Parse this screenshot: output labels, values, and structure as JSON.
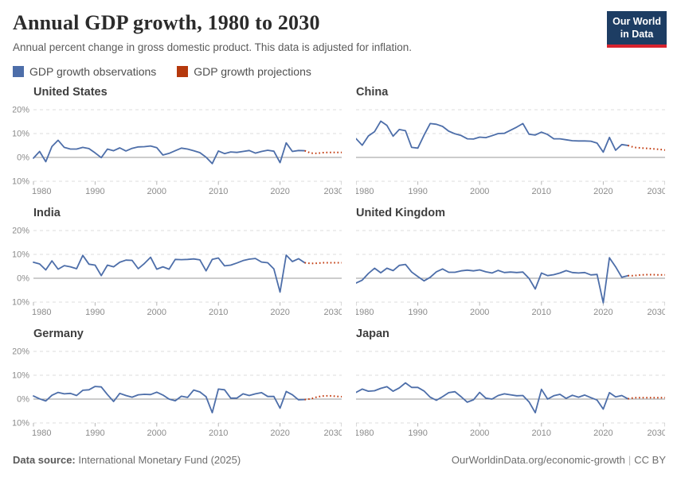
{
  "header": {
    "title": "Annual GDP growth, 1980 to 2030",
    "subtitle": "Annual percent change in gross domestic product. This data is adjusted for inflation."
  },
  "logo": {
    "line1": "Our World",
    "line2": "in Data",
    "bg": "#1d3d63",
    "bar": "#d8232e"
  },
  "legend": [
    {
      "label": "GDP growth observations",
      "color": "#4d6ea9"
    },
    {
      "label": "GDP growth projections",
      "color": "#b5390d"
    }
  ],
  "colors": {
    "observation_line": "#4d6ea9",
    "projection_line": "#c23a0e",
    "gridline": "#dcdcdc",
    "zero_line": "#9a9a9a",
    "axis_text": "#8b8b8b",
    "tick": "#b5b5b5"
  },
  "axes": {
    "xlim": [
      1980,
      2030
    ],
    "ylim": [
      -10,
      20
    ],
    "x_ticks": [
      1980,
      1990,
      2000,
      2010,
      2020,
      2030
    ],
    "y_ticks": [
      {
        "value": 20,
        "label": "20%"
      },
      {
        "value": 10,
        "label": "10%"
      },
      {
        "value": 0,
        "label": "0%"
      },
      {
        "value": -10,
        "label": "-10%"
      }
    ],
    "grid": "dashed horizontal, solid zero line"
  },
  "chart_data": [
    {
      "type": "line",
      "title": "United States",
      "show_y_labels": true,
      "obs_start_year": 1980,
      "obs_end_year": 2024,
      "proj_end_year": 2030,
      "observations": [
        -0.3,
        2.5,
        -1.8,
        4.6,
        7.2,
        4.2,
        3.5,
        3.5,
        4.2,
        3.7,
        1.9,
        -0.1,
        3.5,
        2.8,
        4.0,
        2.7,
        3.8,
        4.4,
        4.5,
        4.8,
        4.1,
        1.0,
        1.7,
        2.8,
        3.9,
        3.5,
        2.8,
        2.0,
        0.1,
        -2.6,
        2.7,
        1.6,
        2.3,
        2.1,
        2.5,
        2.9,
        1.8,
        2.5,
        3.0,
        2.6,
        -2.2,
        6.1,
        2.5,
        2.9,
        2.8
      ],
      "projections": [
        1.8,
        1.7,
        2.0,
        2.1,
        2.1,
        2.1
      ]
    },
    {
      "type": "line",
      "title": "China",
      "show_y_labels": false,
      "obs_start_year": 1980,
      "obs_end_year": 2024,
      "proj_end_year": 2030,
      "observations": [
        7.9,
        5.1,
        9.0,
        10.8,
        15.2,
        13.4,
        8.9,
        11.7,
        11.2,
        4.2,
        3.9,
        9.3,
        14.2,
        13.9,
        13.0,
        11.0,
        9.9,
        9.2,
        7.8,
        7.7,
        8.5,
        8.3,
        9.1,
        10.0,
        10.1,
        11.4,
        12.7,
        14.2,
        9.7,
        9.4,
        10.6,
        9.6,
        7.8,
        7.8,
        7.4,
        7.0,
        6.9,
        6.9,
        6.8,
        6.0,
        2.2,
        8.4,
        3.0,
        5.4,
        5.0
      ],
      "projections": [
        4.2,
        4.0,
        3.8,
        3.6,
        3.4,
        3.1
      ]
    },
    {
      "type": "line",
      "title": "India",
      "show_y_labels": true,
      "obs_start_year": 1980,
      "obs_end_year": 2024,
      "proj_end_year": 2030,
      "observations": [
        6.7,
        6.0,
        3.5,
        7.3,
        3.8,
        5.3,
        4.8,
        4.0,
        9.6,
        5.9,
        5.5,
        1.1,
        5.5,
        4.8,
        6.7,
        7.6,
        7.5,
        4.0,
        6.2,
        8.8,
        3.8,
        4.8,
        3.8,
        7.9,
        7.8,
        7.9,
        8.1,
        7.7,
        3.1,
        7.9,
        8.5,
        5.2,
        5.5,
        6.4,
        7.4,
        8.0,
        8.3,
        6.8,
        6.5,
        3.9,
        -5.8,
        9.7,
        7.0,
        8.2,
        6.5
      ],
      "projections": [
        6.2,
        6.3,
        6.5,
        6.5,
        6.5,
        6.5
      ]
    },
    {
      "type": "line",
      "title": "United Kingdom",
      "show_y_labels": false,
      "obs_start_year": 1980,
      "obs_end_year": 2024,
      "proj_end_year": 2030,
      "observations": [
        -2.0,
        -0.8,
        2.0,
        4.2,
        2.3,
        4.2,
        3.2,
        5.4,
        5.8,
        2.6,
        0.7,
        -1.1,
        0.4,
        2.7,
        3.9,
        2.5,
        2.5,
        3.1,
        3.4,
        3.1,
        3.5,
        2.7,
        2.2,
        3.3,
        2.4,
        2.6,
        2.4,
        2.6,
        -0.1,
        -4.5,
        2.2,
        1.1,
        1.5,
        2.2,
        3.2,
        2.4,
        2.2,
        2.4,
        1.4,
        1.6,
        -10.3,
        8.6,
        4.8,
        0.4,
        1.1
      ],
      "projections": [
        1.1,
        1.4,
        1.5,
        1.5,
        1.4,
        1.4
      ]
    },
    {
      "type": "line",
      "title": "Germany",
      "show_y_labels": true,
      "obs_start_year": 1980,
      "obs_end_year": 2024,
      "proj_end_year": 2030,
      "observations": [
        1.3,
        0.1,
        -0.8,
        1.6,
        2.8,
        2.2,
        2.4,
        1.5,
        3.7,
        3.9,
        5.3,
        5.1,
        1.9,
        -1.0,
        2.4,
        1.5,
        0.8,
        1.8,
        2.0,
        1.9,
        2.9,
        1.7,
        0.0,
        -0.7,
        1.2,
        0.7,
        3.8,
        3.0,
        1.0,
        -5.7,
        4.2,
        3.9,
        0.4,
        0.4,
        2.2,
        1.5,
        2.2,
        2.7,
        1.1,
        1.1,
        -3.8,
        3.2,
        1.8,
        -0.3,
        -0.2
      ],
      "projections": [
        0.1,
        0.9,
        1.3,
        1.4,
        1.2,
        1.0
      ]
    },
    {
      "type": "line",
      "title": "Japan",
      "show_y_labels": false,
      "obs_start_year": 1980,
      "obs_end_year": 2024,
      "proj_end_year": 2030,
      "observations": [
        2.8,
        4.2,
        3.3,
        3.5,
        4.5,
        5.2,
        3.3,
        4.7,
        6.8,
        4.9,
        4.9,
        3.4,
        0.8,
        -0.5,
        1.0,
        2.7,
        3.1,
        1.0,
        -1.3,
        -0.3,
        2.8,
        0.4,
        0.0,
        1.5,
        2.2,
        1.8,
        1.4,
        1.5,
        -1.2,
        -5.7,
        4.1,
        0.0,
        1.4,
        2.0,
        0.3,
        1.6,
        0.8,
        1.7,
        0.6,
        -0.4,
        -4.2,
        2.7,
        0.9,
        1.5,
        0.1
      ],
      "projections": [
        0.6,
        0.6,
        0.6,
        0.6,
        0.6,
        0.6
      ]
    }
  ],
  "footer": {
    "source_label": "Data source:",
    "source_text": " International Monetary Fund (2025)",
    "url_text": "OurWorldinData.org/economic-growth",
    "license_text": "CC BY"
  }
}
